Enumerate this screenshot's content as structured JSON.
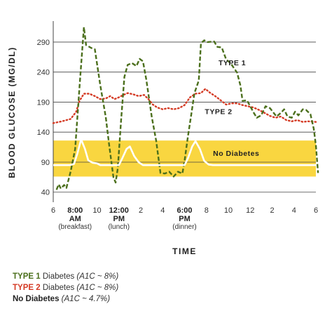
{
  "chart_data": {
    "type": "line",
    "xlabel": "TIME",
    "ylabel": "BLOOD GLUCOSE (MG/DL)",
    "yticks": [
      40,
      90,
      140,
      190,
      240,
      290
    ],
    "ylim": [
      35,
      325
    ],
    "x_ticks": [
      {
        "x": 0,
        "hour": "6",
        "sub": []
      },
      {
        "x": 2,
        "hour": "8:00",
        "sub": [
          "AM",
          "(breakfast)"
        ]
      },
      {
        "x": 4,
        "hour": "10",
        "sub": []
      },
      {
        "x": 6,
        "hour": "12:00",
        "sub": [
          "PM",
          "(lunch)"
        ]
      },
      {
        "x": 8,
        "hour": "2",
        "sub": []
      },
      {
        "x": 10,
        "hour": "4",
        "sub": []
      },
      {
        "x": 12,
        "hour": "6:00",
        "sub": [
          "PM",
          "(dinner)"
        ]
      },
      {
        "x": 14,
        "hour": "8",
        "sub": []
      },
      {
        "x": 16,
        "hour": "10",
        "sub": []
      },
      {
        "x": 18,
        "hour": "12",
        "sub": []
      },
      {
        "x": 20,
        "hour": "2",
        "sub": []
      },
      {
        "x": 22,
        "hour": "4",
        "sub": []
      },
      {
        "x": 24,
        "hour": "6",
        "sub": []
      }
    ],
    "xlim": [
      0,
      24
    ],
    "band": {
      "label": "No Diabetes",
      "y_min": 66,
      "y_max": 126,
      "color": "#f9d640"
    },
    "series": [
      {
        "name": "TYPE 1",
        "color": "#4b6f1c",
        "style": "dashed",
        "points": [
          [
            0.3,
            44
          ],
          [
            0.5,
            53
          ],
          [
            0.7,
            46
          ],
          [
            1.0,
            52
          ],
          [
            1.2,
            47
          ],
          [
            1.6,
            75
          ],
          [
            2.0,
            112
          ],
          [
            2.4,
            215
          ],
          [
            2.8,
            315
          ],
          [
            3.0,
            285
          ],
          [
            3.5,
            280
          ],
          [
            3.8,
            278
          ],
          [
            4.3,
            218
          ],
          [
            4.8,
            165
          ],
          [
            5.1,
            120
          ],
          [
            5.5,
            65
          ],
          [
            5.7,
            56
          ],
          [
            5.9,
            80
          ],
          [
            6.2,
            160
          ],
          [
            6.5,
            232
          ],
          [
            6.8,
            252
          ],
          [
            7.2,
            255
          ],
          [
            7.6,
            250
          ],
          [
            7.9,
            262
          ],
          [
            8.2,
            258
          ],
          [
            8.5,
            228
          ],
          [
            9.0,
            166
          ],
          [
            9.4,
            126
          ],
          [
            9.8,
            72
          ],
          [
            10.2,
            71
          ],
          [
            10.6,
            74
          ],
          [
            11.0,
            66
          ],
          [
            11.4,
            74
          ],
          [
            11.8,
            71
          ],
          [
            12.0,
            92
          ],
          [
            12.3,
            132
          ],
          [
            12.6,
            168
          ],
          [
            12.9,
            205
          ],
          [
            13.3,
            226
          ],
          [
            13.5,
            288
          ],
          [
            13.8,
            293
          ],
          [
            14.1,
            290
          ],
          [
            14.7,
            291
          ],
          [
            15.0,
            282
          ],
          [
            15.4,
            281
          ],
          [
            15.8,
            261
          ],
          [
            16.2,
            255
          ],
          [
            16.5,
            247
          ],
          [
            16.8,
            239
          ],
          [
            17.1,
            218
          ],
          [
            17.3,
            192
          ],
          [
            17.7,
            193
          ],
          [
            18.0,
            183
          ],
          [
            18.3,
            173
          ],
          [
            18.6,
            164
          ],
          [
            19.0,
            168
          ],
          [
            19.4,
            183
          ],
          [
            19.8,
            180
          ],
          [
            20.1,
            173
          ],
          [
            20.4,
            166
          ],
          [
            20.8,
            172
          ],
          [
            21.1,
            178
          ],
          [
            21.4,
            166
          ],
          [
            21.8,
            164
          ],
          [
            22.1,
            174
          ],
          [
            22.4,
            168
          ],
          [
            22.8,
            178
          ],
          [
            23.1,
            177
          ],
          [
            23.5,
            170
          ],
          [
            23.8,
            146
          ],
          [
            24.0,
            118
          ],
          [
            24.2,
            72
          ]
        ]
      },
      {
        "name": "TYPE 2",
        "color": "#d43a24",
        "style": "dotted",
        "points": [
          [
            0,
            155
          ],
          [
            0.8,
            158
          ],
          [
            1.6,
            162
          ],
          [
            2.1,
            174
          ],
          [
            2.4,
            192
          ],
          [
            2.8,
            204
          ],
          [
            3.3,
            204
          ],
          [
            3.8,
            200
          ],
          [
            4.3,
            195
          ],
          [
            4.8,
            196
          ],
          [
            5.2,
            200
          ],
          [
            5.6,
            195
          ],
          [
            6.0,
            198
          ],
          [
            6.4,
            202
          ],
          [
            6.8,
            205
          ],
          [
            7.3,
            203
          ],
          [
            7.8,
            200
          ],
          [
            8.3,
            202
          ],
          [
            8.7,
            195
          ],
          [
            9.1,
            186
          ],
          [
            9.5,
            181
          ],
          [
            10.0,
            178
          ],
          [
            10.5,
            180
          ],
          [
            11.0,
            178
          ],
          [
            11.5,
            180
          ],
          [
            12.0,
            185
          ],
          [
            12.5,
            198
          ],
          [
            13.0,
            204
          ],
          [
            13.5,
            205
          ],
          [
            13.9,
            212
          ],
          [
            14.3,
            206
          ],
          [
            14.8,
            200
          ],
          [
            15.3,
            193
          ],
          [
            15.8,
            186
          ],
          [
            16.3,
            188
          ],
          [
            16.8,
            188
          ],
          [
            17.3,
            185
          ],
          [
            17.8,
            183
          ],
          [
            18.3,
            181
          ],
          [
            18.8,
            177
          ],
          [
            19.3,
            172
          ],
          [
            19.8,
            167
          ],
          [
            20.3,
            164
          ],
          [
            20.8,
            166
          ],
          [
            21.3,
            160
          ],
          [
            21.8,
            158
          ],
          [
            22.3,
            160
          ],
          [
            22.8,
            157
          ],
          [
            23.3,
            158
          ],
          [
            24.0,
            157
          ]
        ]
      },
      {
        "name": "No Diabetes",
        "color": "#ffffff",
        "style": "solid",
        "points": [
          [
            0,
            85
          ],
          [
            1.5,
            85
          ],
          [
            1.9,
            87
          ],
          [
            2.2,
            104
          ],
          [
            2.55,
            128
          ],
          [
            2.9,
            112
          ],
          [
            3.2,
            93
          ],
          [
            3.6,
            89
          ],
          [
            4.0,
            88
          ],
          [
            4.3,
            85
          ],
          [
            6.0,
            85
          ],
          [
            6.3,
            96
          ],
          [
            6.7,
            112
          ],
          [
            7.0,
            116
          ],
          [
            7.4,
            100
          ],
          [
            7.8,
            90
          ],
          [
            8.2,
            85
          ],
          [
            12.0,
            85
          ],
          [
            12.3,
            96
          ],
          [
            12.7,
            116
          ],
          [
            13.0,
            125
          ],
          [
            13.4,
            112
          ],
          [
            13.8,
            92
          ],
          [
            14.2,
            86
          ],
          [
            14.6,
            85
          ],
          [
            24.0,
            85
          ]
        ]
      }
    ],
    "annotations": [
      {
        "text": "TYPE 1",
        "x": 15.1,
        "y": 256
      },
      {
        "text": "TYPE 2",
        "x": 13.85,
        "y": 175
      },
      {
        "text": "No Diabetes",
        "x": 14.6,
        "y": 105
      }
    ]
  },
  "legend": [
    {
      "name": "TYPE 1",
      "rest": " Diabetes ",
      "a1c": "(A1C ~ 8%)",
      "color": "#4b6f1c"
    },
    {
      "name": "TYPE 2",
      "rest": " Diabetes ",
      "a1c": "(A1C ~ 8%)",
      "color": "#d43a24"
    },
    {
      "name": "No Diabetes",
      "rest": " ",
      "a1c": "(A1C ~ 4.7%)",
      "color": "#222222"
    }
  ]
}
